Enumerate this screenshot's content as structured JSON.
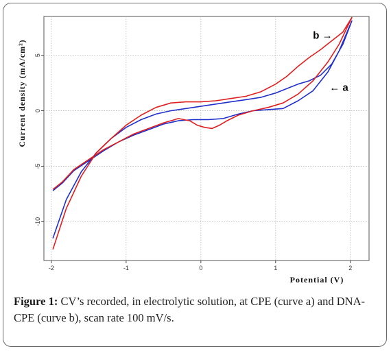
{
  "chart_data": {
    "type": "line",
    "xlabel": "Potential (V)",
    "ylabel": "Current density (mA/cm²)",
    "xlim": [
      -2.1,
      2.25
    ],
    "ylim": [
      -13.5,
      8.5
    ],
    "x_ticks": [
      -2,
      -1,
      0,
      1,
      2
    ],
    "x_tick_labels": [
      "-2",
      "-1",
      "0",
      "1",
      "2"
    ],
    "y_ticks": [
      -10,
      -5,
      0,
      5
    ],
    "y_tick_labels": [
      "-10",
      "-5",
      "0",
      "5"
    ],
    "grid": true,
    "annotations": [
      {
        "text": "b →",
        "x": 1.5,
        "y": 6.5
      },
      {
        "text": "← a",
        "x": 1.72,
        "y": 1.8
      }
    ],
    "series": [
      {
        "color": "#1f2fcc",
        "x": [
          -1.98,
          -1.85,
          -1.7,
          -1.5,
          -1.3,
          -1.1,
          -0.9,
          -0.7,
          -0.5,
          -0.3,
          -0.1,
          0.1,
          0.3,
          0.5,
          0.7,
          0.9,
          1.1,
          1.3,
          1.5,
          1.7,
          1.85,
          2.02,
          1.9,
          1.75,
          1.6,
          1.45,
          1.3,
          1.15,
          1.0,
          0.8,
          0.6,
          0.4,
          0.2,
          0.0,
          -0.2,
          -0.4,
          -0.6,
          -0.8,
          -1.0,
          -1.2,
          -1.4,
          -1.6,
          -1.8,
          -1.98
        ],
        "y": [
          -7.2,
          -6.5,
          -5.4,
          -4.5,
          -3.6,
          -2.8,
          -2.2,
          -1.7,
          -1.2,
          -0.9,
          -0.8,
          -0.8,
          -0.7,
          -0.3,
          0.0,
          0.1,
          0.2,
          0.9,
          1.8,
          3.5,
          5.4,
          8.1,
          6.0,
          4.2,
          3.2,
          2.7,
          2.4,
          2.0,
          1.6,
          1.2,
          1.0,
          0.8,
          0.6,
          0.4,
          0.2,
          0.0,
          -0.3,
          -0.8,
          -1.5,
          -2.5,
          -3.8,
          -5.5,
          -8.0,
          -11.5
        ]
      },
      {
        "color": "#e01e1e",
        "x": [
          -1.98,
          -1.85,
          -1.7,
          -1.5,
          -1.3,
          -1.1,
          -0.9,
          -0.7,
          -0.5,
          -0.3,
          -0.15,
          -0.05,
          0.05,
          0.15,
          0.25,
          0.35,
          0.5,
          0.7,
          0.9,
          1.1,
          1.3,
          1.5,
          1.7,
          1.85,
          2.02,
          1.9,
          1.75,
          1.6,
          1.45,
          1.3,
          1.15,
          1.0,
          0.8,
          0.6,
          0.4,
          0.2,
          0.0,
          -0.2,
          -0.4,
          -0.6,
          -0.8,
          -1.0,
          -1.2,
          -1.4,
          -1.6,
          -1.8,
          -1.98
        ],
        "y": [
          -7.1,
          -6.4,
          -5.3,
          -4.4,
          -3.5,
          -2.8,
          -2.1,
          -1.6,
          -1.1,
          -0.7,
          -0.9,
          -1.3,
          -1.5,
          -1.6,
          -1.3,
          -0.9,
          -0.4,
          0.0,
          0.3,
          0.7,
          1.5,
          2.7,
          4.4,
          6.0,
          8.4,
          7.1,
          6.3,
          5.5,
          4.8,
          4.0,
          3.1,
          2.4,
          1.7,
          1.3,
          1.1,
          0.9,
          0.8,
          0.8,
          0.7,
          0.3,
          -0.4,
          -1.3,
          -2.5,
          -3.8,
          -5.9,
          -8.8,
          -12.5
        ]
      }
    ]
  },
  "caption": {
    "label": "Figure 1:",
    "text": " CV’s recorded, in electrolytic solution, at CPE (curve a) and DNA-CPE (curve b), scan rate 100 mV/s."
  }
}
